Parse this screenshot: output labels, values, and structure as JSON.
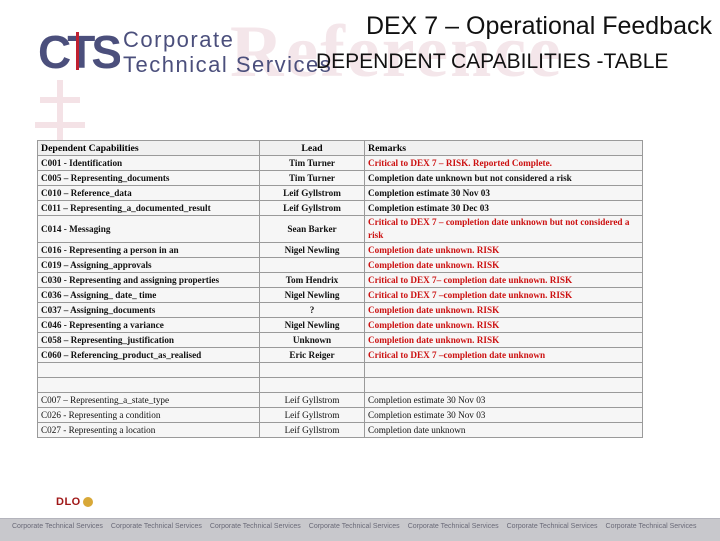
{
  "header": {
    "title_line1": "DEX 7 – Operational Feedback",
    "title_line2": "DEPENDENT CAPABILITIES -TABLE",
    "brand_line1": "Corporate",
    "brand_line2": "Technical Services",
    "logo_text": "CTS",
    "watermark_text": "Reference"
  },
  "table": {
    "headers": [
      "Dependent Capabilities",
      "Lead",
      "Remarks"
    ],
    "rows": [
      {
        "cap": "C001 - Identification",
        "lead": "Tim Turner",
        "remarks": "Critical to DEX 7 – RISK. Reported Complete.",
        "remarks_color": "red-black"
      },
      {
        "cap": "C005 – Representing_documents",
        "lead": "Tim Turner",
        "remarks": "Completion date unknown but not considered a risk",
        "remarks_color": "black"
      },
      {
        "cap": "C010 – Reference_data",
        "lead": "Leif Gyllstrom",
        "remarks": "Completion estimate 30 Nov 03",
        "remarks_color": "black"
      },
      {
        "cap": "C011 – Representing_a_documented_result",
        "lead": "Leif Gyllstrom",
        "remarks": "Completion estimate 30 Dec 03",
        "remarks_color": "black"
      },
      {
        "cap": "C014 - Messaging",
        "lead": "Sean Barker",
        "remarks": "Critical to DEX 7 – completion date unknown but not considered a risk",
        "remarks_color": "mixed"
      },
      {
        "cap": "C016 - Representing a person in an",
        "lead": "Nigel Newling",
        "remarks": "Completion date unknown. RISK",
        "remarks_color": "red"
      },
      {
        "cap": "C019 – Assigning_approvals",
        "lead": "",
        "remarks": "Completion date unknown. RISK",
        "remarks_color": "red"
      },
      {
        "cap": "C030 - Representing and assigning properties",
        "lead": "Tom Hendrix",
        "remarks": "Critical to DEX 7– completion date unknown. RISK",
        "remarks_color": "red"
      },
      {
        "cap": "C036 – Assigning_ date_ time",
        "lead": "Nigel Newling",
        "remarks": "Critical to DEX 7 –completion date unknown. RISK",
        "remarks_color": "red"
      },
      {
        "cap": "C037 – Assigning_documents",
        "lead": "?",
        "remarks": "Completion date unknown. RISK",
        "remarks_color": "red"
      },
      {
        "cap": "C046 - Representing a variance",
        "lead": "Nigel Newling",
        "remarks": "Completion date unknown. RISK",
        "remarks_color": "red"
      },
      {
        "cap": "C058 – Representing_justification",
        "lead": "Unknown",
        "remarks": "Completion date unknown. RISK",
        "remarks_color": "red"
      },
      {
        "cap": "C060 – Referencing_product_as_realised",
        "lead": "Eric Reiger",
        "remarks": "Critical to DEX 7 –completion date unknown",
        "remarks_color": "red"
      }
    ],
    "lower_rows": [
      {
        "cap": "C007 – Representing_a_state_type",
        "lead": "Leif Gyllstrom",
        "remarks": "Completion estimate 30 Nov 03"
      },
      {
        "cap": "C026 - Representing a condition",
        "lead": "Leif Gyllstrom",
        "remarks": "Completion estimate 30 Nov 03"
      },
      {
        "cap": "C027 - Representing a location",
        "lead": "Leif Gyllstrom",
        "remarks": "Completion date unknown"
      }
    ]
  },
  "footer": {
    "logo_text": "DLO",
    "band_text": "Corporate Technical Services"
  },
  "colors": {
    "brand": "#4b4f7c",
    "risk_red": "#cc1111",
    "footer_band": "#c8c8cc"
  }
}
